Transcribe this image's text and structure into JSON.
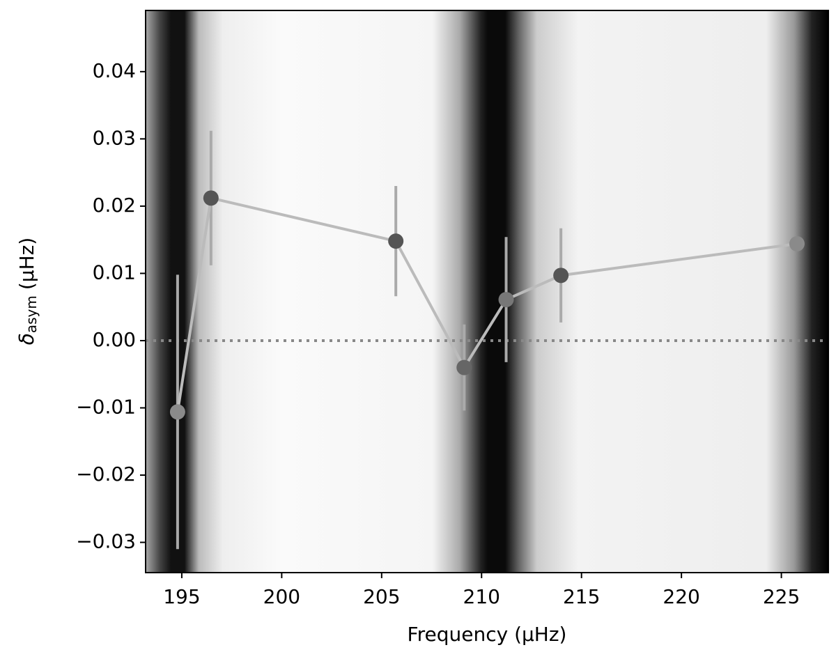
{
  "chart_data": {
    "type": "errorbar",
    "xlabel": "Frequency (μHz)",
    "ylabel": {
      "symbol": "δ",
      "subscript": "asym",
      "unit": "(μHz)"
    },
    "x": [
      194.79,
      196.46,
      205.71,
      209.13,
      211.23,
      213.97,
      225.78
    ],
    "series": [
      {
        "color": "#bbbbbb",
        "marker_colors": [
          "#8a8a8a",
          "#555555",
          "#555555",
          "#666666",
          "#777777",
          "#555555",
          "#8a8a8a"
        ],
        "values": [
          -0.0106,
          0.0212,
          0.0148,
          -0.004,
          0.0061,
          0.0097,
          0.0144
        ],
        "errors": [
          0.0204,
          0.01,
          0.0082,
          0.0064,
          0.0093,
          0.007,
          0
        ]
      }
    ],
    "hline": 0,
    "xlim": [
      193.19,
      227.35
    ],
    "ylim": [
      -0.0345,
      0.0491
    ],
    "xticks": [
      195,
      200,
      205,
      210,
      215,
      220,
      225
    ],
    "yticks": [
      {
        "value": -0.03,
        "label": "−0.03"
      },
      {
        "value": -0.02,
        "label": "−0.02"
      },
      {
        "value": -0.01,
        "label": "−0.01"
      },
      {
        "value": 0,
        "label": "0.00"
      },
      {
        "value": 0.01,
        "label": "0.01"
      },
      {
        "value": 0.02,
        "label": "0.02"
      },
      {
        "value": 0.03,
        "label": "0.03"
      },
      {
        "value": 0.04,
        "label": "0.04"
      }
    ]
  }
}
